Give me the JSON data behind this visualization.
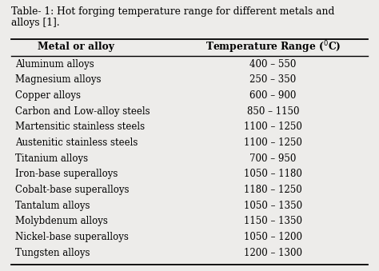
{
  "title_line1": "Table- 1: Hot forging temperature range for different metals and",
  "title_line2": "alloys [1].",
  "col1_header": "Metal or alloy",
  "col2_header": "Temperature Range ($^{0}$C)",
  "rows": [
    [
      "Aluminum alloys",
      "400 – 550"
    ],
    [
      "Magnesium alloys",
      "250 – 350"
    ],
    [
      "Copper alloys",
      "600 – 900"
    ],
    [
      "Carbon and Low-alloy steels",
      "850 – 1150"
    ],
    [
      "Martensitic stainless steels",
      "1100 – 1250"
    ],
    [
      "Austenitic stainless steels",
      "1100 – 1250"
    ],
    [
      "Titanium alloys",
      "700 – 950"
    ],
    [
      "Iron-base superalloys",
      "1050 – 1180"
    ],
    [
      "Cobalt-base superalloys",
      "1180 – 1250"
    ],
    [
      "Tantalum alloys",
      "1050 – 1350"
    ],
    [
      "Molybdenum alloys",
      "1150 – 1350"
    ],
    [
      "Nickel-base superalloys",
      "1050 – 1200"
    ],
    [
      "Tungsten alloys",
      "1200 – 1300"
    ]
  ],
  "bg_color": "#edecea",
  "font_size_title": 8.8,
  "font_size_header": 8.8,
  "font_size_body": 8.5
}
